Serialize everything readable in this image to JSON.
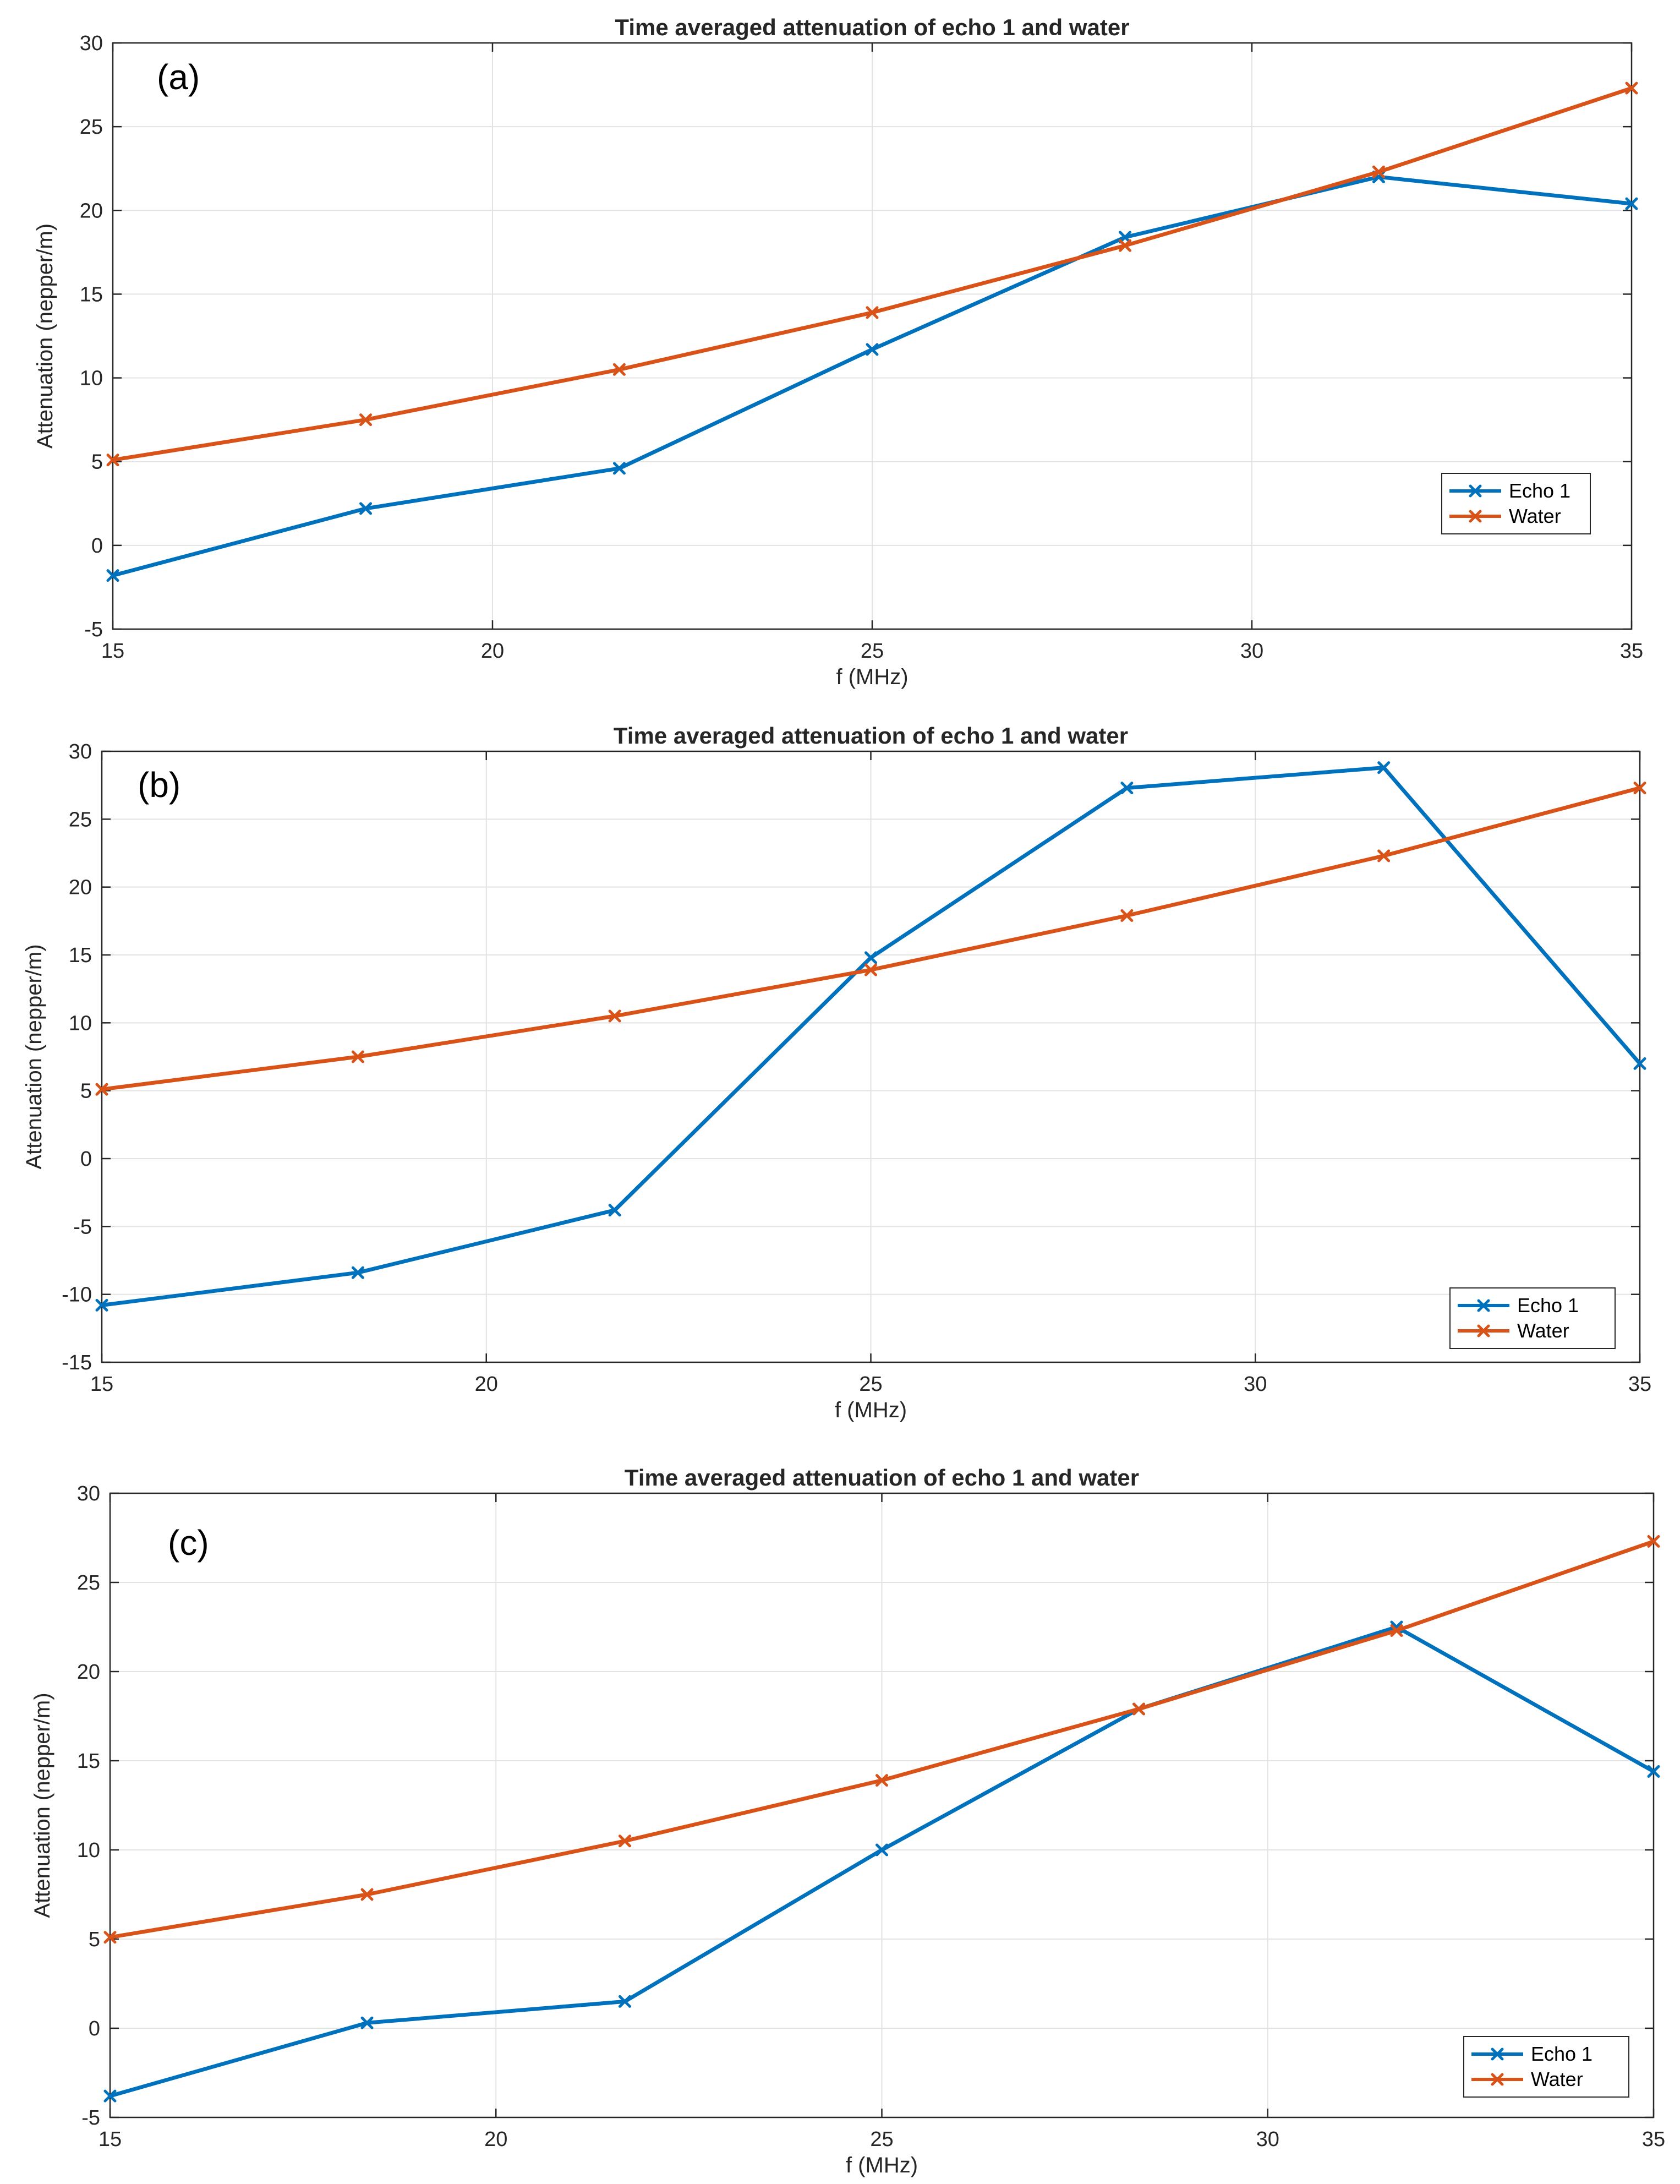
{
  "colors": {
    "echo": "#0072BD",
    "water": "#D95319",
    "grid": "#e3e3e3",
    "axis": "#262626"
  },
  "chart_data": [
    {
      "type": "line",
      "panel": "(a)",
      "title": "Time averaged attenuation of echo 1 and water",
      "xlabel": "f (MHz)",
      "ylabel": "Attenuation (nepper/m)",
      "xlim": [
        15,
        35
      ],
      "ylim": [
        -5,
        30
      ],
      "xticks": [
        15,
        20,
        25,
        30,
        35
      ],
      "yticks": [
        -5,
        0,
        5,
        10,
        15,
        20,
        25,
        30
      ],
      "grid": true,
      "legend": "right",
      "x": [
        15,
        18.33,
        21.67,
        25,
        28.33,
        31.67,
        35
      ],
      "series": [
        {
          "name": "Echo 1",
          "values": [
            -1.8,
            2.2,
            4.6,
            11.7,
            18.4,
            22.0,
            20.4
          ]
        },
        {
          "name": "Water",
          "values": [
            5.1,
            7.5,
            10.5,
            13.9,
            17.9,
            22.3,
            27.3
          ]
        }
      ]
    },
    {
      "type": "line",
      "panel": "(b)",
      "title": "Time averaged attenuation of echo 1 and water",
      "xlabel": "f (MHz)",
      "ylabel": "Attenuation (nepper/m)",
      "xlim": [
        15,
        35
      ],
      "ylim": [
        -15,
        30
      ],
      "xticks": [
        15,
        20,
        25,
        30,
        35
      ],
      "yticks": [
        -15,
        -10,
        -5,
        0,
        5,
        10,
        15,
        20,
        25,
        30
      ],
      "grid": true,
      "legend": "bottom-right",
      "x": [
        15,
        18.33,
        21.67,
        25,
        28.33,
        31.67,
        35
      ],
      "series": [
        {
          "name": "Echo 1",
          "values": [
            -10.8,
            -8.4,
            -3.8,
            14.8,
            27.3,
            28.8,
            7.0
          ]
        },
        {
          "name": "Water",
          "values": [
            5.1,
            7.5,
            10.5,
            13.9,
            17.9,
            22.3,
            27.3
          ]
        }
      ]
    },
    {
      "type": "line",
      "panel": "(c)",
      "title": "Time averaged attenuation of echo 1 and water",
      "xlabel": "f (MHz)",
      "ylabel": "Attenuation (nepper/m)",
      "xlim": [
        15,
        35
      ],
      "ylim": [
        -5,
        30
      ],
      "xticks": [
        15,
        20,
        25,
        30,
        35
      ],
      "yticks": [
        -5,
        0,
        5,
        10,
        15,
        20,
        25,
        30
      ],
      "grid": true,
      "legend": "bottom-right",
      "x": [
        15,
        18.33,
        21.67,
        25,
        28.33,
        31.67,
        35
      ],
      "series": [
        {
          "name": "Echo 1",
          "values": [
            -3.8,
            0.3,
            1.5,
            10.0,
            17.9,
            22.5,
            14.4
          ]
        },
        {
          "name": "Water",
          "values": [
            5.1,
            7.5,
            10.5,
            13.9,
            17.9,
            22.3,
            27.3
          ]
        }
      ]
    }
  ]
}
